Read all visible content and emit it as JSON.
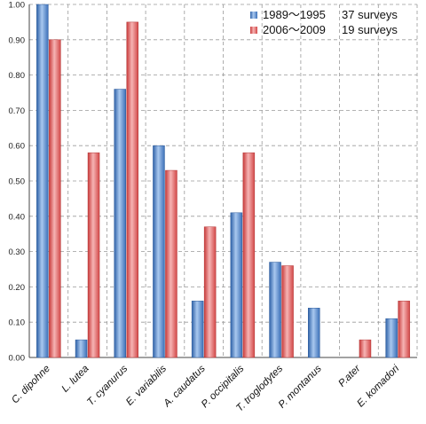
{
  "chart_data": {
    "type": "bar",
    "title": "",
    "xlabel": "",
    "ylabel": "",
    "ylim": [
      0,
      1
    ],
    "ytick_step": 0.1,
    "ytick_labels": [
      "0.00",
      "0.10",
      "0.20",
      "0.30",
      "0.40",
      "0.50",
      "0.60",
      "0.70",
      "0.80",
      "0.90",
      "1.00"
    ],
    "grid": "horizontal dashed",
    "legend_position": "top-right",
    "categories": [
      "C. dipohne",
      "L. lutea",
      "T. cyanurus",
      "E. variabilis",
      "A. caudatus",
      "P. occipitalis",
      "T. troglodytes",
      "P. montanus",
      "P.ater",
      "E. komadori"
    ],
    "series": [
      {
        "name": "1989〜1995",
        "note": "37 surveys",
        "color": "#4a7fc4",
        "values": [
          1.0,
          0.05,
          0.76,
          0.6,
          0.16,
          0.41,
          0.27,
          0.14,
          0.0,
          0.11
        ]
      },
      {
        "name": "2006〜2009",
        "note": "19 surveys",
        "color": "#e06565",
        "values": [
          0.9,
          0.58,
          0.95,
          0.53,
          0.37,
          0.58,
          0.26,
          0.0,
          0.05,
          0.16
        ]
      }
    ]
  }
}
